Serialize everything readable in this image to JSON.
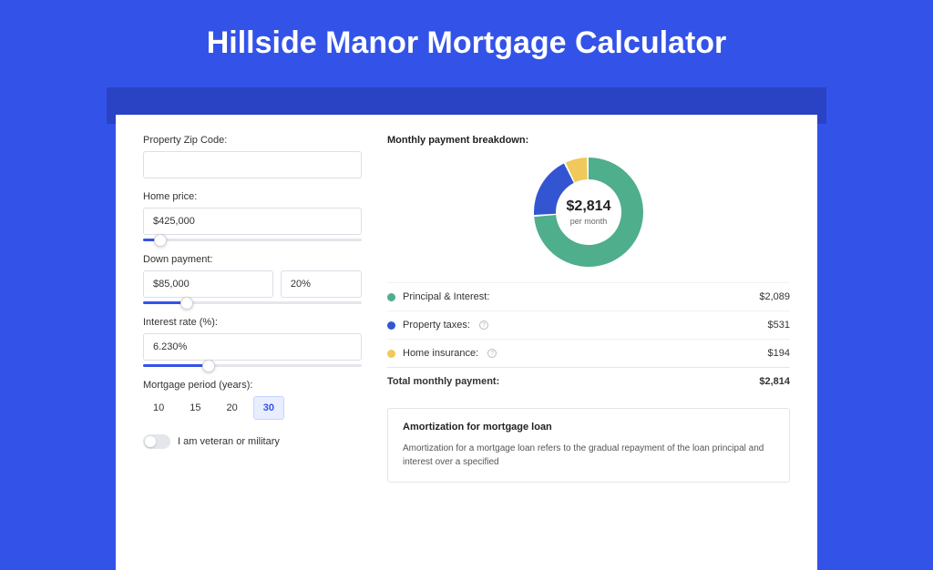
{
  "page": {
    "title": "Hillside Manor Mortgage Calculator",
    "background_color": "#3353e8",
    "shadow_color": "#2943c4",
    "card_background": "#ffffff"
  },
  "form": {
    "zip": {
      "label": "Property Zip Code:",
      "value": ""
    },
    "home_price": {
      "label": "Home price:",
      "value": "$425,000",
      "slider_pct": 8
    },
    "down_payment": {
      "label": "Down payment:",
      "amount": "$85,000",
      "percent": "20%",
      "slider_pct": 20
    },
    "interest_rate": {
      "label": "Interest rate (%):",
      "value": "6.230%",
      "slider_pct": 30
    },
    "mortgage_period": {
      "label": "Mortgage period (years):",
      "options": [
        "10",
        "15",
        "20",
        "30"
      ],
      "active_index": 3
    },
    "veteran": {
      "label": "I am veteran or military",
      "checked": false
    }
  },
  "breakdown": {
    "title": "Monthly payment breakdown:",
    "center_amount": "$2,814",
    "center_sub": "per month",
    "donut": {
      "size": 122,
      "inner_radius": 36,
      "outer_radius": 60,
      "background": "#ffffff",
      "slices": [
        {
          "label": "Principal & Interest",
          "fraction": 0.742,
          "color": "#4fae8b"
        },
        {
          "label": "Property taxes",
          "fraction": 0.189,
          "color": "#3455d1"
        },
        {
          "label": "Home insurance",
          "fraction": 0.069,
          "color": "#f1c85b"
        }
      ]
    },
    "items": [
      {
        "label": "Principal & Interest:",
        "value": "$2,089",
        "color": "#4fae8b",
        "info": false
      },
      {
        "label": "Property taxes:",
        "value": "$531",
        "color": "#3455d1",
        "info": true
      },
      {
        "label": "Home insurance:",
        "value": "$194",
        "color": "#f1c85b",
        "info": true
      }
    ],
    "total": {
      "label": "Total monthly payment:",
      "value": "$2,814"
    }
  },
  "amortization": {
    "title": "Amortization for mortgage loan",
    "text": "Amortization for a mortgage loan refers to the gradual repayment of the loan principal and interest over a specified"
  }
}
